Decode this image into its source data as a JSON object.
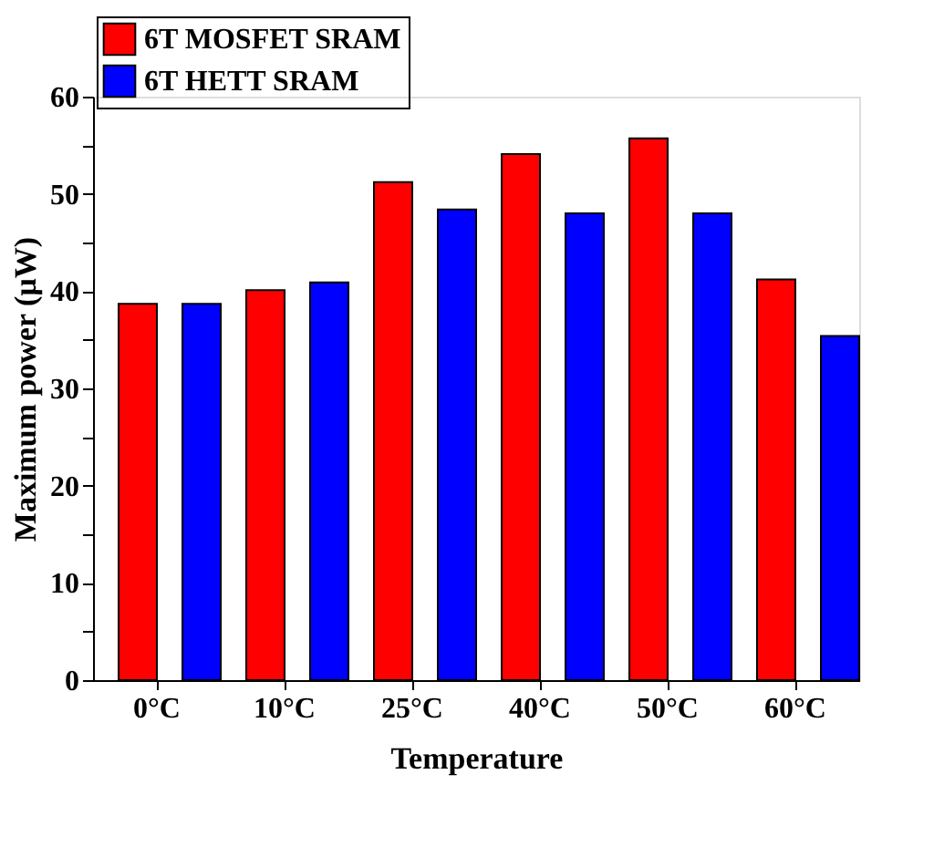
{
  "chart_data": {
    "type": "bar",
    "xlabel": "Temperature",
    "ylabel": "Maximum power (µW)",
    "categories": [
      "0°C",
      "10°C",
      "25°C",
      "40°C",
      "50°C",
      "60°C"
    ],
    "series": [
      {
        "name": "6T MOSFET SRAM",
        "color": "#ff0000",
        "values": [
          38.7,
          40.1,
          51.2,
          54.1,
          55.7,
          41.2
        ]
      },
      {
        "name": "6T HETT SRAM",
        "color": "#0000ff",
        "values": [
          38.7,
          40.9,
          48.4,
          48.0,
          48.0,
          35.4
        ]
      }
    ],
    "ylim": [
      0,
      60
    ],
    "yticks": [
      0,
      {
        "value": 5,
        "label": null
      },
      10,
      {
        "value": 15,
        "label": null
      },
      20,
      {
        "value": 25,
        "label": null
      },
      30,
      {
        "value": 35,
        "label": null
      },
      40,
      {
        "value": 45,
        "label": null
      },
      50,
      {
        "value": 55,
        "label": null
      },
      60
    ],
    "grid": false,
    "legend": "top left"
  }
}
